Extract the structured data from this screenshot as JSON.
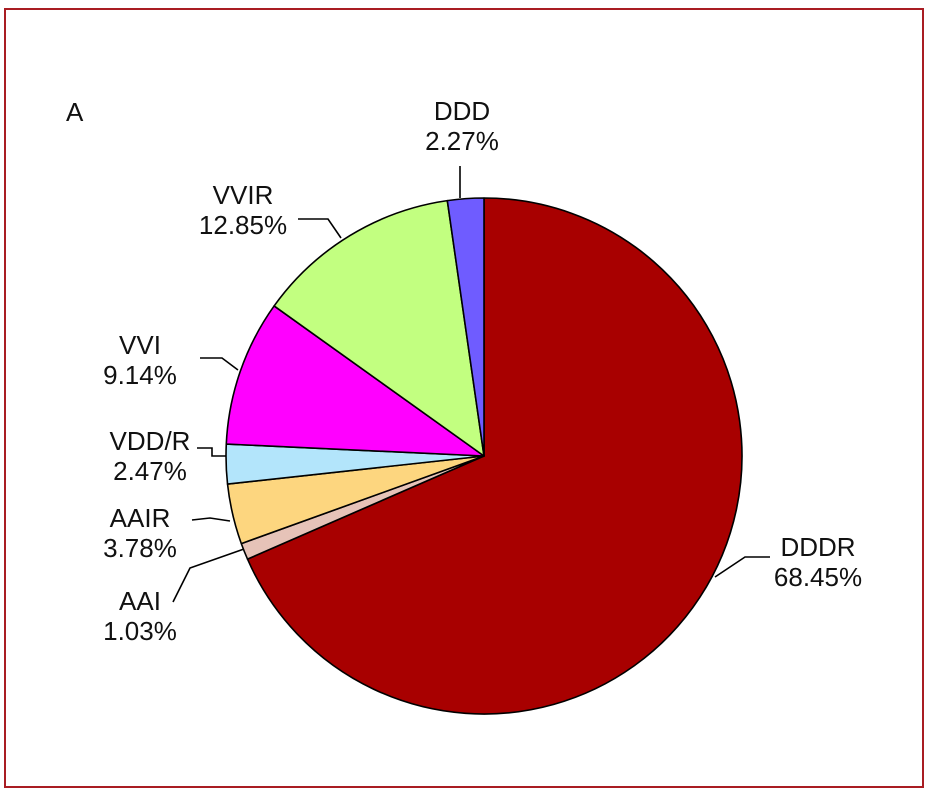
{
  "panel_label": "A",
  "chart_data": {
    "type": "pie",
    "title": "",
    "start_angle_deg": 0,
    "direction": "clockwise",
    "slices": [
      {
        "label": "DDDR",
        "value": 68.45,
        "value_text": "68.45%",
        "color": "#a80000"
      },
      {
        "label": "AAI",
        "value": 1.03,
        "value_text": "1.03%",
        "color": "#e6c3b8"
      },
      {
        "label": "AAIR",
        "value": 3.78,
        "value_text": "3.78%",
        "color": "#fdd67f"
      },
      {
        "label": "VDD/R",
        "value": 2.47,
        "value_text": "2.47%",
        "color": "#b3e5fb"
      },
      {
        "label": "VVI",
        "value": 9.14,
        "value_text": "9.14%",
        "color": "#ff00ff"
      },
      {
        "label": "VVIR",
        "value": 12.85,
        "value_text": "12.85%",
        "color": "#c2ff80"
      },
      {
        "label": "DDD",
        "value": 2.27,
        "value_text": "2.27%",
        "color": "#6f5cff"
      }
    ]
  }
}
